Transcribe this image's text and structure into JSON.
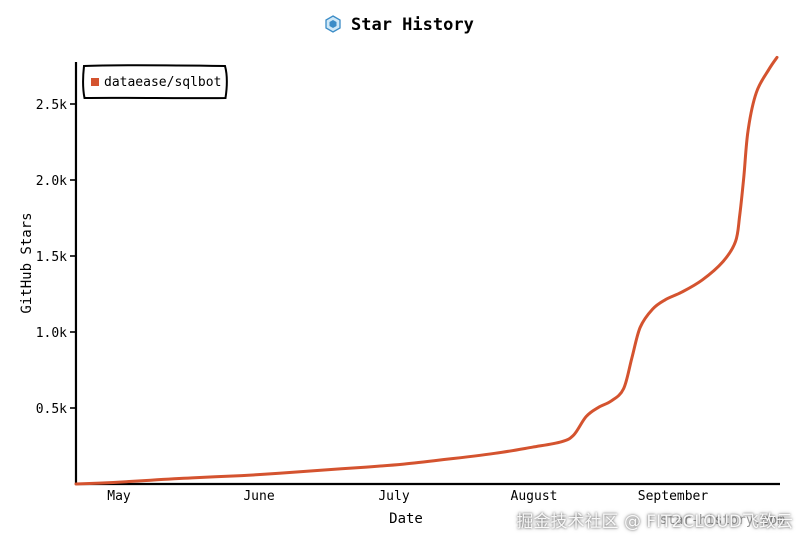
{
  "chart_data": {
    "type": "line",
    "title": "Star History",
    "xlabel": "Date",
    "ylabel": "GitHub Stars",
    "x_ticks": [
      "May",
      "June",
      "July",
      "August",
      "September"
    ],
    "y_ticks": [
      "0.5k",
      "1.0k",
      "1.5k",
      "2.0k",
      "2.5k"
    ],
    "ylim": [
      0,
      2750
    ],
    "grid": false,
    "legend_position": "top-left",
    "series": [
      {
        "name": "dataease/sqlbot",
        "color": "#d4532f",
        "points": [
          [
            "2025-04-22",
            0
          ],
          [
            "2025-05-01",
            10
          ],
          [
            "2025-05-10",
            25
          ],
          [
            "2025-05-20",
            40
          ],
          [
            "2025-06-01",
            55
          ],
          [
            "2025-06-10",
            70
          ],
          [
            "2025-06-20",
            90
          ],
          [
            "2025-07-01",
            110
          ],
          [
            "2025-07-10",
            130
          ],
          [
            "2025-07-20",
            160
          ],
          [
            "2025-08-01",
            200
          ],
          [
            "2025-08-10",
            240
          ],
          [
            "2025-08-17",
            275
          ],
          [
            "2025-08-20",
            320
          ],
          [
            "2025-08-23",
            440
          ],
          [
            "2025-08-26",
            500
          ],
          [
            "2025-08-29",
            540
          ],
          [
            "2025-09-01",
            620
          ],
          [
            "2025-09-03",
            820
          ],
          [
            "2025-09-05",
            1020
          ],
          [
            "2025-09-08",
            1140
          ],
          [
            "2025-09-11",
            1200
          ],
          [
            "2025-09-15",
            1250
          ],
          [
            "2025-09-20",
            1330
          ],
          [
            "2025-09-25",
            1450
          ],
          [
            "2025-09-28",
            1580
          ],
          [
            "2025-09-29",
            1750
          ],
          [
            "2025-09-30",
            2000
          ],
          [
            "2025-10-01",
            2300
          ],
          [
            "2025-10-03",
            2550
          ],
          [
            "2025-10-06",
            2700
          ],
          [
            "2025-10-08",
            2780
          ]
        ]
      }
    ]
  },
  "watermark": {
    "text": "掘金技术社区 @ FIT2CLOUD飞致云",
    "sub_text": "star-history.com"
  }
}
